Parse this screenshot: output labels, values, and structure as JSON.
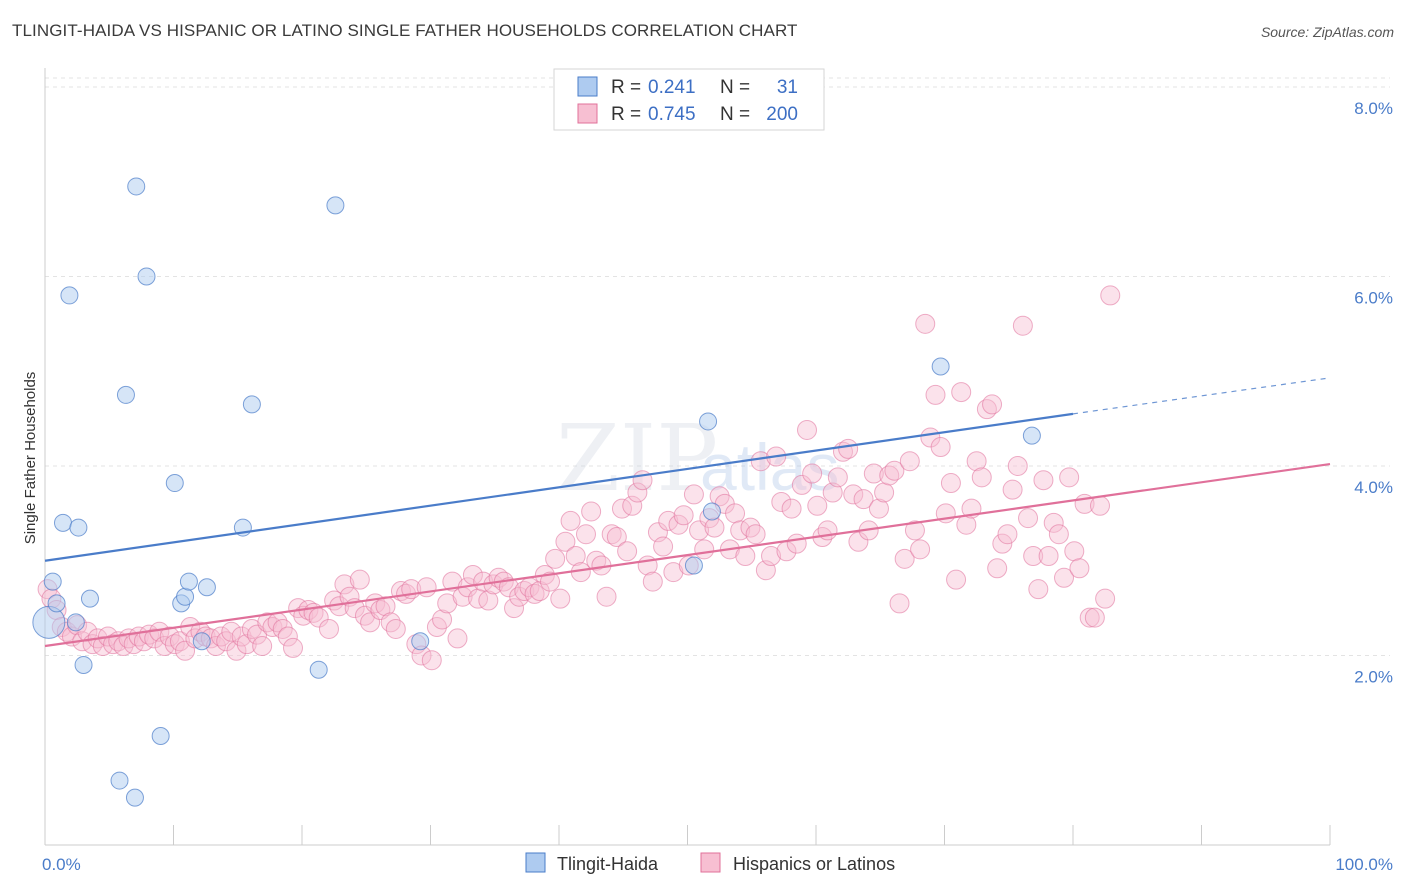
{
  "title": "TLINGIT-HAIDA VS HISPANIC OR LATINO SINGLE FATHER HOUSEHOLDS CORRELATION CHART",
  "source": "Source: ZipAtlas.com",
  "watermark": {
    "zip": "ZIP",
    "atlas": "atlas"
  },
  "colors": {
    "blue": "#4a7cc9",
    "blue_fill": "#aecbf0",
    "pink": "#e0709a",
    "pink_fill": "#f7bfd2"
  },
  "legend": {
    "r_label": "R =",
    "n_label": "N =",
    "rows": [
      {
        "r": "0.241",
        "n": "31"
      },
      {
        "r": "0.745",
        "n": "200"
      }
    ]
  },
  "chart_data": {
    "type": "scatter",
    "ylabel": "Single Father Households",
    "x_tick_labels": [
      "0.0%",
      "100.0%"
    ],
    "y_tick_labels": [
      "2.0%",
      "4.0%",
      "6.0%",
      "8.0%"
    ],
    "xlim": [
      0,
      100
    ],
    "ylim": [
      0,
      8.2
    ],
    "y_ticks": [
      2,
      4,
      6,
      8
    ],
    "grid": true,
    "legend_position": "top-center",
    "series": [
      {
        "name": "Tlingit-Haida",
        "r": 0.241,
        "n": 31,
        "trend": {
          "x0": 0,
          "y0": 3.0,
          "x1": 80,
          "y1": 4.55,
          "dash_to_x": 100,
          "dash_to_y": 4.93
        },
        "points": [
          [
            0.3,
            2.35
          ],
          [
            0.6,
            2.78
          ],
          [
            0.9,
            2.55
          ],
          [
            1.4,
            3.4
          ],
          [
            1.9,
            5.8
          ],
          [
            2.4,
            2.35
          ],
          [
            2.6,
            3.35
          ],
          [
            3.0,
            1.9
          ],
          [
            3.5,
            2.6
          ],
          [
            5.8,
            0.68
          ],
          [
            6.3,
            4.75
          ],
          [
            7.0,
            0.5
          ],
          [
            7.1,
            6.95
          ],
          [
            7.9,
            6.0
          ],
          [
            9.0,
            1.15
          ],
          [
            10.1,
            3.82
          ],
          [
            10.6,
            2.55
          ],
          [
            10.9,
            2.62
          ],
          [
            11.2,
            2.78
          ],
          [
            12.2,
            2.15
          ],
          [
            12.6,
            2.72
          ],
          [
            15.4,
            3.35
          ],
          [
            16.1,
            4.65
          ],
          [
            21.3,
            1.85
          ],
          [
            22.6,
            6.75
          ],
          [
            29.2,
            2.15
          ],
          [
            50.5,
            2.95
          ],
          [
            51.6,
            4.47
          ],
          [
            51.9,
            3.52
          ],
          [
            69.7,
            5.05
          ],
          [
            76.8,
            4.32
          ]
        ]
      },
      {
        "name": "Hispanics or Latinos",
        "r": 0.745,
        "n": 200,
        "trend": {
          "x0": 0,
          "y0": 2.1,
          "x1": 100,
          "y1": 4.02
        },
        "points": [
          [
            0.2,
            2.7
          ],
          [
            0.5,
            2.6
          ],
          [
            0.9,
            2.48
          ],
          [
            1.3,
            2.3
          ],
          [
            1.7,
            2.25
          ],
          [
            2.1,
            2.2
          ],
          [
            2.5,
            2.32
          ],
          [
            2.9,
            2.15
          ],
          [
            3.3,
            2.25
          ],
          [
            3.7,
            2.12
          ],
          [
            4.1,
            2.18
          ],
          [
            4.5,
            2.1
          ],
          [
            4.9,
            2.2
          ],
          [
            5.3,
            2.12
          ],
          [
            5.7,
            2.15
          ],
          [
            6.1,
            2.1
          ],
          [
            6.5,
            2.18
          ],
          [
            6.9,
            2.12
          ],
          [
            7.3,
            2.2
          ],
          [
            7.7,
            2.15
          ],
          [
            8.1,
            2.22
          ],
          [
            8.5,
            2.18
          ],
          [
            8.9,
            2.25
          ],
          [
            9.3,
            2.1
          ],
          [
            9.7,
            2.2
          ],
          [
            10.1,
            2.12
          ],
          [
            10.5,
            2.15
          ],
          [
            10.9,
            2.05
          ],
          [
            11.3,
            2.3
          ],
          [
            11.7,
            2.18
          ],
          [
            12.1,
            2.25
          ],
          [
            12.5,
            2.2
          ],
          [
            12.9,
            2.18
          ],
          [
            13.3,
            2.1
          ],
          [
            13.7,
            2.2
          ],
          [
            14.1,
            2.15
          ],
          [
            14.5,
            2.25
          ],
          [
            14.9,
            2.05
          ],
          [
            15.3,
            2.2
          ],
          [
            15.7,
            2.12
          ],
          [
            16.1,
            2.28
          ],
          [
            16.5,
            2.22
          ],
          [
            16.9,
            2.1
          ],
          [
            17.3,
            2.35
          ],
          [
            17.7,
            2.3
          ],
          [
            18.1,
            2.35
          ],
          [
            18.5,
            2.28
          ],
          [
            18.9,
            2.2
          ],
          [
            19.3,
            2.08
          ],
          [
            19.7,
            2.5
          ],
          [
            20.1,
            2.42
          ],
          [
            20.5,
            2.48
          ],
          [
            20.9,
            2.45
          ],
          [
            21.3,
            2.4
          ],
          [
            22.1,
            2.28
          ],
          [
            22.5,
            2.58
          ],
          [
            22.9,
            2.52
          ],
          [
            23.3,
            2.75
          ],
          [
            23.7,
            2.62
          ],
          [
            24.1,
            2.5
          ],
          [
            24.5,
            2.8
          ],
          [
            24.9,
            2.42
          ],
          [
            25.3,
            2.35
          ],
          [
            25.7,
            2.55
          ],
          [
            26.1,
            2.48
          ],
          [
            26.5,
            2.52
          ],
          [
            26.9,
            2.35
          ],
          [
            27.3,
            2.28
          ],
          [
            27.7,
            2.68
          ],
          [
            28.1,
            2.65
          ],
          [
            28.5,
            2.7
          ],
          [
            28.9,
            2.12
          ],
          [
            29.3,
            2.0
          ],
          [
            29.7,
            2.72
          ],
          [
            30.1,
            1.95
          ],
          [
            30.5,
            2.3
          ],
          [
            30.9,
            2.38
          ],
          [
            31.3,
            2.55
          ],
          [
            31.7,
            2.78
          ],
          [
            32.1,
            2.18
          ],
          [
            32.5,
            2.62
          ],
          [
            32.9,
            2.72
          ],
          [
            33.3,
            2.85
          ],
          [
            33.7,
            2.6
          ],
          [
            34.1,
            2.78
          ],
          [
            34.5,
            2.58
          ],
          [
            34.9,
            2.75
          ],
          [
            35.3,
            2.82
          ],
          [
            35.7,
            2.78
          ],
          [
            36.1,
            2.72
          ],
          [
            36.5,
            2.5
          ],
          [
            36.9,
            2.62
          ],
          [
            37.3,
            2.68
          ],
          [
            37.7,
            2.72
          ],
          [
            38.1,
            2.65
          ],
          [
            38.5,
            2.68
          ],
          [
            38.9,
            2.85
          ],
          [
            39.3,
            2.78
          ],
          [
            39.7,
            3.02
          ],
          [
            40.1,
            2.6
          ],
          [
            40.5,
            3.2
          ],
          [
            40.9,
            3.42
          ],
          [
            41.3,
            3.05
          ],
          [
            41.7,
            2.88
          ],
          [
            42.1,
            3.28
          ],
          [
            42.5,
            3.52
          ],
          [
            42.9,
            3.0
          ],
          [
            43.3,
            2.95
          ],
          [
            43.7,
            2.62
          ],
          [
            44.1,
            3.28
          ],
          [
            44.5,
            3.25
          ],
          [
            44.9,
            3.55
          ],
          [
            45.3,
            3.1
          ],
          [
            45.7,
            3.58
          ],
          [
            46.1,
            3.72
          ],
          [
            46.5,
            3.85
          ],
          [
            46.9,
            2.95
          ],
          [
            47.3,
            2.78
          ],
          [
            47.7,
            3.3
          ],
          [
            48.1,
            3.15
          ],
          [
            48.5,
            3.42
          ],
          [
            48.9,
            2.88
          ],
          [
            49.3,
            3.38
          ],
          [
            49.7,
            3.48
          ],
          [
            50.1,
            2.95
          ],
          [
            50.5,
            3.7
          ],
          [
            50.9,
            3.32
          ],
          [
            51.3,
            3.12
          ],
          [
            51.7,
            3.45
          ],
          [
            52.1,
            3.35
          ],
          [
            52.5,
            3.68
          ],
          [
            52.9,
            3.6
          ],
          [
            53.3,
            3.12
          ],
          [
            53.7,
            3.5
          ],
          [
            54.1,
            3.32
          ],
          [
            54.5,
            3.05
          ],
          [
            54.9,
            3.35
          ],
          [
            55.3,
            3.28
          ],
          [
            55.7,
            4.05
          ],
          [
            56.1,
            2.9
          ],
          [
            56.5,
            3.05
          ],
          [
            56.9,
            4.1
          ],
          [
            57.3,
            3.62
          ],
          [
            57.7,
            3.1
          ],
          [
            58.1,
            3.55
          ],
          [
            58.5,
            3.18
          ],
          [
            58.9,
            3.8
          ],
          [
            59.3,
            4.38
          ],
          [
            59.7,
            3.92
          ],
          [
            60.1,
            3.58
          ],
          [
            60.5,
            3.25
          ],
          [
            60.9,
            3.32
          ],
          [
            61.3,
            3.72
          ],
          [
            61.7,
            3.88
          ],
          [
            62.1,
            4.15
          ],
          [
            62.5,
            4.18
          ],
          [
            62.9,
            3.7
          ],
          [
            63.3,
            3.2
          ],
          [
            63.7,
            3.65
          ],
          [
            64.1,
            3.32
          ],
          [
            64.5,
            3.92
          ],
          [
            64.9,
            3.55
          ],
          [
            65.3,
            3.72
          ],
          [
            65.7,
            3.9
          ],
          [
            66.1,
            3.95
          ],
          [
            66.5,
            2.55
          ],
          [
            66.9,
            3.02
          ],
          [
            67.3,
            4.05
          ],
          [
            67.7,
            3.32
          ],
          [
            68.1,
            3.12
          ],
          [
            68.5,
            5.5
          ],
          [
            68.9,
            4.3
          ],
          [
            69.3,
            4.75
          ],
          [
            69.7,
            4.2
          ],
          [
            70.1,
            3.5
          ],
          [
            70.5,
            3.82
          ],
          [
            70.9,
            2.8
          ],
          [
            71.3,
            4.78
          ],
          [
            71.7,
            3.38
          ],
          [
            72.1,
            3.55
          ],
          [
            72.5,
            4.05
          ],
          [
            72.9,
            3.88
          ],
          [
            73.3,
            4.6
          ],
          [
            73.7,
            4.65
          ],
          [
            74.1,
            2.92
          ],
          [
            74.5,
            3.18
          ],
          [
            74.9,
            3.28
          ],
          [
            75.3,
            3.75
          ],
          [
            75.7,
            4.0
          ],
          [
            76.1,
            5.48
          ],
          [
            76.5,
            3.45
          ],
          [
            76.9,
            3.05
          ],
          [
            77.3,
            2.7
          ],
          [
            77.7,
            3.85
          ],
          [
            78.1,
            3.05
          ],
          [
            78.5,
            3.4
          ],
          [
            78.9,
            3.28
          ],
          [
            79.3,
            2.82
          ],
          [
            79.7,
            3.88
          ],
          [
            80.1,
            3.1
          ],
          [
            80.5,
            2.92
          ],
          [
            80.9,
            3.6
          ],
          [
            81.3,
            2.4
          ],
          [
            81.7,
            2.4
          ],
          [
            82.1,
            3.58
          ],
          [
            82.5,
            2.6
          ],
          [
            82.9,
            5.8
          ]
        ]
      }
    ]
  }
}
